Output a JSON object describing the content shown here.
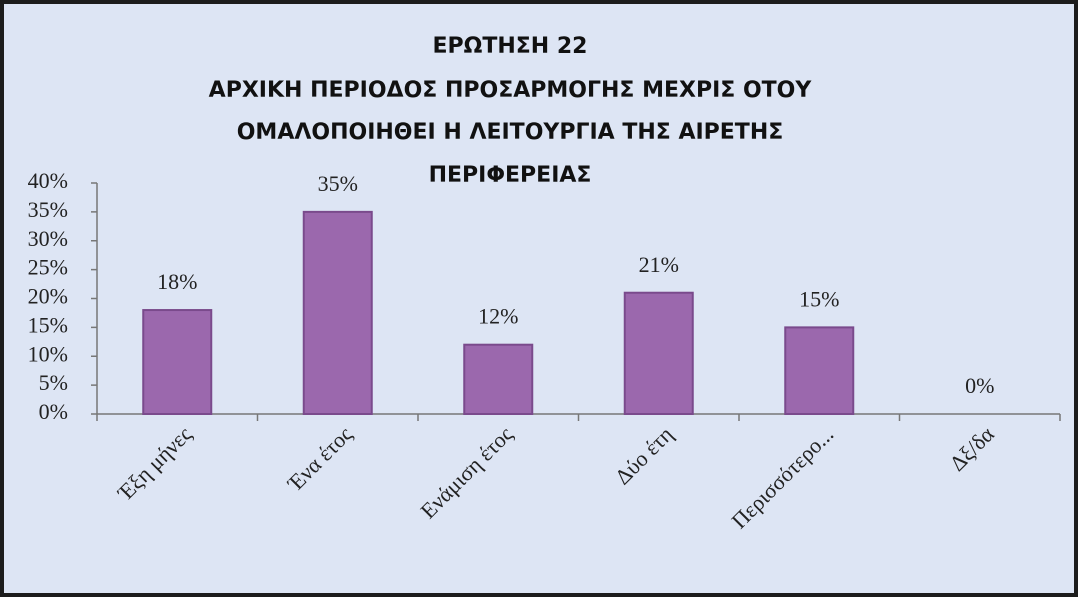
{
  "chart_data": {
    "type": "bar",
    "title": [
      "ΕΡΩΤΗΣΗ 22",
      "ΑΡΧΙΚΗ ΠΕΡΙΟΔΟΣ ΠΡΟΣΑΡΜΟΓΗΣ ΜΕΧΡΙΣ ΟΤΟΥ",
      "ΟΜΑΛΟΠΟΙΗΘΕΙ Η ΛΕΙΤΟΥΡΓΙΑ ΤΗΣ ΑΙΡΕΤΗΣ",
      "ΠΕΡΙΦΕΡΕΙΑΣ"
    ],
    "categories": [
      "Έξη μήνες",
      "Ένα έτος",
      "Ενάμιση έτος",
      "Δύο έτη",
      "Περισσότερο...",
      "Δξ/δα"
    ],
    "values": [
      18,
      35,
      12,
      21,
      15,
      0
    ],
    "value_labels": [
      "18%",
      "35%",
      "12%",
      "21%",
      "15%",
      "0%"
    ],
    "color": "#9b68ad",
    "ylim": [
      0,
      40
    ],
    "yticks": [
      {
        "value": 0,
        "label": "0%"
      },
      {
        "value": 5,
        "label": "5%"
      },
      {
        "value": 10,
        "label": "10%"
      },
      {
        "value": 15,
        "label": "15%"
      },
      {
        "value": 20,
        "label": "20%"
      },
      {
        "value": 25,
        "label": "25%"
      },
      {
        "value": 30,
        "label": "30%"
      },
      {
        "value": 35,
        "label": "35%"
      },
      {
        "value": 40,
        "label": "40%"
      }
    ],
    "grid": false
  }
}
